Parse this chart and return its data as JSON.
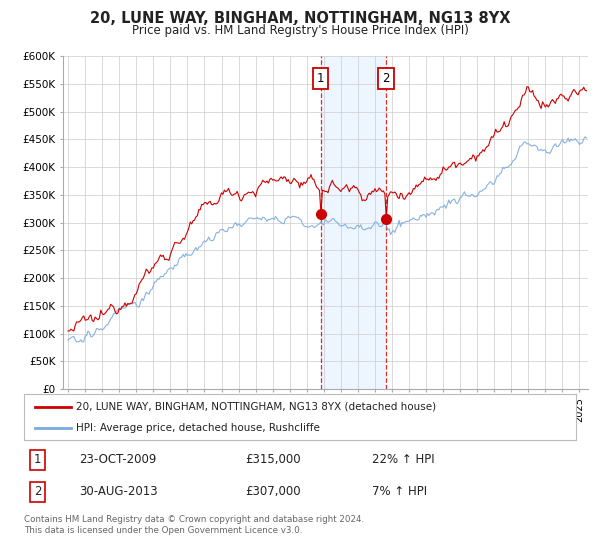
{
  "title": "20, LUNE WAY, BINGHAM, NOTTINGHAM, NG13 8YX",
  "subtitle": "Price paid vs. HM Land Registry's House Price Index (HPI)",
  "footer": "Contains HM Land Registry data © Crown copyright and database right 2024.\nThis data is licensed under the Open Government Licence v3.0.",
  "legend_line1": "20, LUNE WAY, BINGHAM, NOTTINGHAM, NG13 8YX (detached house)",
  "legend_line2": "HPI: Average price, detached house, Rushcliffe",
  "sale1_label": "1",
  "sale1_date": "23-OCT-2009",
  "sale1_price": "£315,000",
  "sale1_hpi": "22% ↑ HPI",
  "sale2_label": "2",
  "sale2_date": "30-AUG-2013",
  "sale2_price": "£307,000",
  "sale2_hpi": "7% ↑ HPI",
  "ylim": [
    0,
    600000
  ],
  "yticks": [
    0,
    50000,
    100000,
    150000,
    200000,
    250000,
    300000,
    350000,
    400000,
    450000,
    500000,
    550000,
    600000
  ],
  "ytick_labels": [
    "£0",
    "£50K",
    "£100K",
    "£150K",
    "£200K",
    "£250K",
    "£300K",
    "£350K",
    "£400K",
    "£450K",
    "£500K",
    "£550K",
    "£600K"
  ],
  "bg_color": "#ffffff",
  "grid_color": "#cccccc",
  "sale_color": "#cc0000",
  "hpi_color": "#7aaadd",
  "sale1_x": 2009.81,
  "sale2_x": 2013.66,
  "shade_color": "#ddeeff",
  "shade_alpha": 0.5,
  "sale1_y": 315000,
  "sale2_y": 307000,
  "xmin": 1995.0,
  "xmax": 2025.5
}
